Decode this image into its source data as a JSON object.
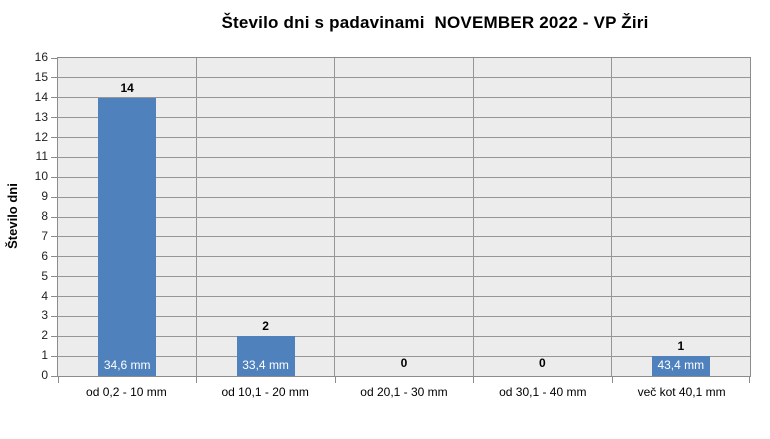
{
  "chart_data": {
    "type": "bar",
    "title": "Število dni s padavinami  NOVEMBER 2022 - VP Žiri",
    "ylabel": "Število dni",
    "xlabel": "",
    "categories": [
      "od 0,2 - 10 mm",
      "od 10,1 - 20 mm",
      "od 20,1 - 30 mm",
      "od 30,1 - 40 mm",
      "več kot 40,1 mm"
    ],
    "values": [
      14,
      2,
      0,
      0,
      1
    ],
    "bar_inner_labels": [
      "34,6 mm",
      "33,4 mm",
      "",
      "",
      "43,4 mm"
    ],
    "ylim": [
      0,
      16
    ],
    "ytick_step": 1,
    "grid": true,
    "legend": "none",
    "colors": {
      "bar": "#4F81BD",
      "plot_background": "#ECECEC",
      "gridline": "#969696",
      "axis_line": "#8C8C8C",
      "tick_text": "#1F1F1F",
      "inner_label_text": "#FFFFFF"
    }
  }
}
